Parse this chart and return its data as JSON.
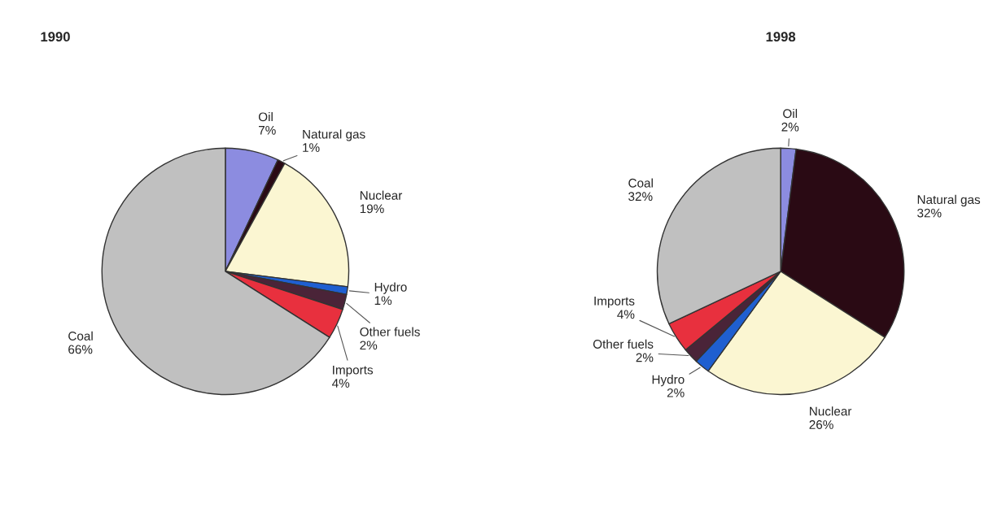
{
  "chart_data": [
    {
      "type": "pie",
      "title": "1990",
      "categories": [
        "Oil",
        "Natural gas",
        "Nuclear",
        "Hydro",
        "Other fuels",
        "Imports",
        "Coal"
      ],
      "values": [
        7,
        1,
        19,
        1,
        2,
        4,
        66
      ],
      "value_labels": [
        "7%",
        "1%",
        "19%",
        "1%",
        "2%",
        "4%",
        "66%"
      ],
      "colors": [
        "#8c8ce0",
        "#2a0a14",
        "#fbf6d2",
        "#1f5fd0",
        "#4a2438",
        "#e8303e",
        "#c0c0c0"
      ]
    },
    {
      "type": "pie",
      "title": "1998",
      "categories": [
        "Oil",
        "Natural gas",
        "Nuclear",
        "Hydro",
        "Other fuels",
        "Imports",
        "Coal"
      ],
      "values": [
        2,
        32,
        26,
        2,
        2,
        4,
        32
      ],
      "value_labels": [
        "2%",
        "32%",
        "26%",
        "2%",
        "2%",
        "4%",
        "32%"
      ],
      "colors": [
        "#8c8ce0",
        "#2a0a14",
        "#fbf6d2",
        "#1f5fd0",
        "#4a2438",
        "#e8303e",
        "#c0c0c0"
      ]
    }
  ]
}
